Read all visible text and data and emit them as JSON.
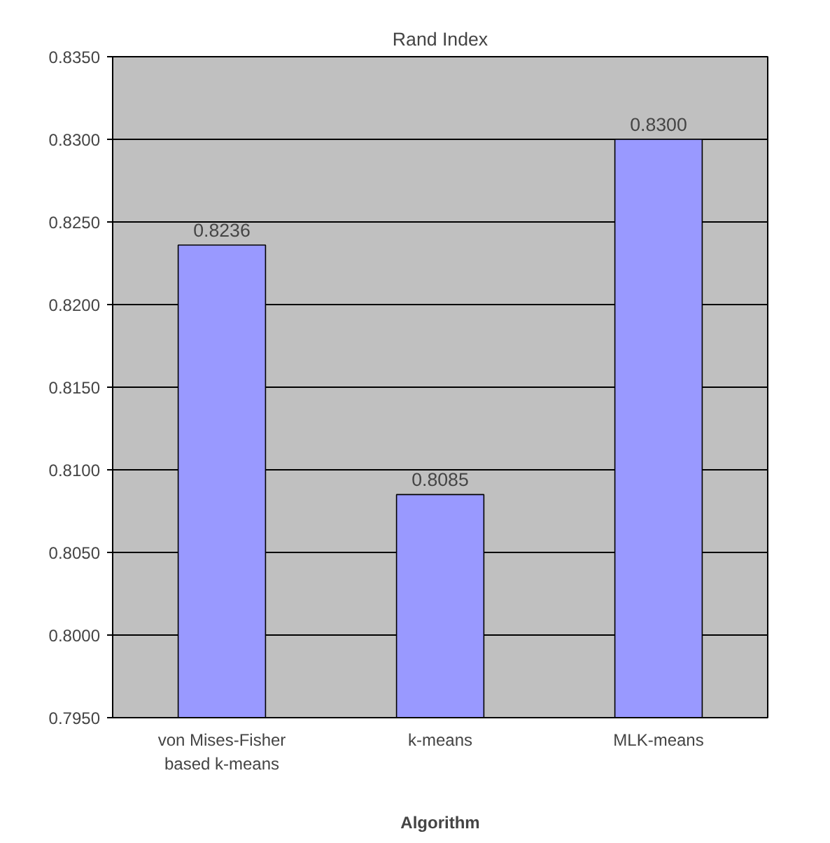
{
  "chart_data": {
    "type": "bar",
    "title": "Rand Index",
    "xlabel": "Algorithm",
    "categories": [
      "von Mises-Fisher\nbased k-means",
      "k-means",
      "MLK-means"
    ],
    "values": [
      0.8236,
      0.8085,
      0.83
    ],
    "color": "#9999ff",
    "value_labels": [
      "0.8236",
      "0.8085",
      "0.8300"
    ],
    "ylim": [
      0.795,
      0.835
    ],
    "yticks": [
      {
        "value": 0.795,
        "label": "0.7950"
      },
      {
        "value": 0.8,
        "label": "0.8000"
      },
      {
        "value": 0.805,
        "label": "0.8050"
      },
      {
        "value": 0.81,
        "label": "0.8100"
      },
      {
        "value": 0.815,
        "label": "0.8150"
      },
      {
        "value": 0.82,
        "label": "0.8200"
      },
      {
        "value": 0.825,
        "label": "0.8250"
      },
      {
        "value": 0.83,
        "label": "0.8300"
      },
      {
        "value": 0.835,
        "label": "0.8350"
      }
    ],
    "grid": "y"
  }
}
